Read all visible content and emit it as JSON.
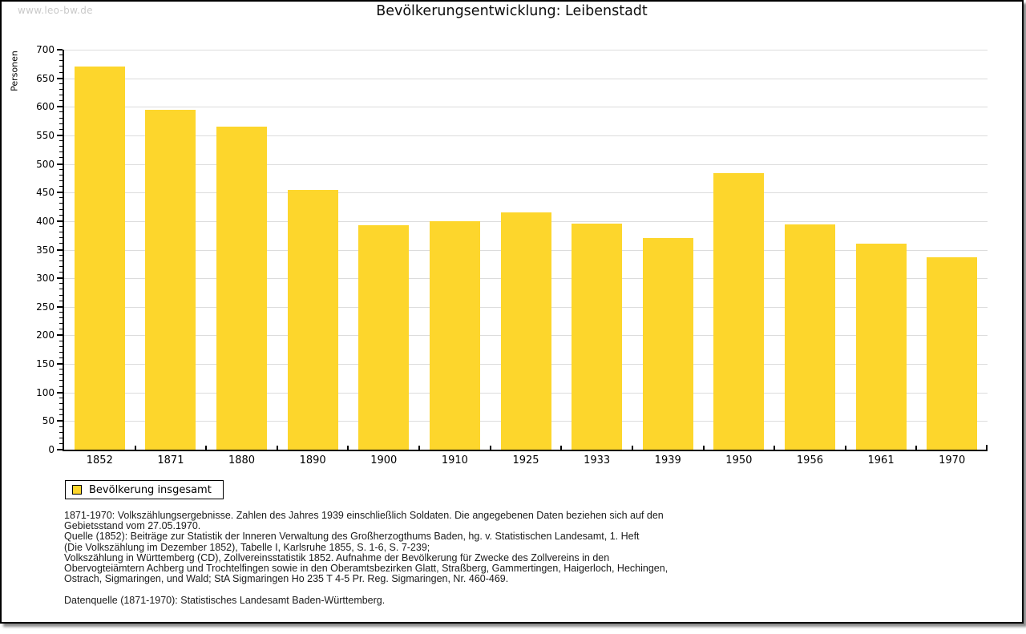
{
  "page": {
    "watermark": "www.leo-bw.de",
    "title": "Bevölkerungsentwicklung: Leibenstadt"
  },
  "chart_data": {
    "type": "bar",
    "title": "Bevölkerungsentwicklung: Leibenstadt",
    "xlabel": "",
    "ylabel": "Personen",
    "categories": [
      "1852",
      "1871",
      "1880",
      "1890",
      "1900",
      "1910",
      "1925",
      "1933",
      "1939",
      "1950",
      "1956",
      "1961",
      "1970"
    ],
    "values": [
      670,
      595,
      565,
      455,
      393,
      400,
      415,
      396,
      371,
      484,
      394,
      360,
      337
    ],
    "ylim": [
      0,
      700
    ],
    "ytick_major_step": 50,
    "ytick_minor_step": 10,
    "grid": true,
    "legend_position": "bottom-left",
    "series_name": "Bevölkerung insgesamt"
  },
  "legend": {
    "label": "Bevölkerung insgesamt"
  },
  "footer": {
    "lines": [
      "1871-1970: Volkszählungsergebnisse. Zahlen des Jahres 1939 einschließlich Soldaten. Die angegebenen Daten beziehen sich auf den",
      "Gebietsstand vom 27.05.1970.",
      "Quelle (1852): Beiträge zur Statistik der Inneren Verwaltung des Großherzogthums Baden, hg. v. Statistischen Landesamt, 1. Heft",
      "(Die Volkszählung im Dezember 1852), Tabelle I, Karlsruhe 1855, S. 1-6, S. 7-239;",
      "Volkszählung in Württemberg (CD), Zollvereinsstatistik 1852. Aufnahme der Bevölkerung für Zwecke des Zollvereins in den",
      "Obervogteiämtern Achberg und Trochtelfingen sowie in den Oberamtsbezirken Glatt, Straßberg, Gammertingen, Haigerloch, Hechingen,",
      "Ostrach, Sigmaringen, und Wald; StA Sigmaringen Ho 235 T 4-5 Pr. Reg. Sigmaringen, Nr. 460-469.",
      "",
      "Datenquelle (1871-1970): Statistisches Landesamt Baden-Württemberg."
    ]
  },
  "colors": {
    "bar_fill": "#FDD62C",
    "gridline": "#DCDCDC",
    "axis": "#000000",
    "text": "#000000",
    "watermark": "#C9C9C9",
    "background": "#FFFFFF"
  }
}
